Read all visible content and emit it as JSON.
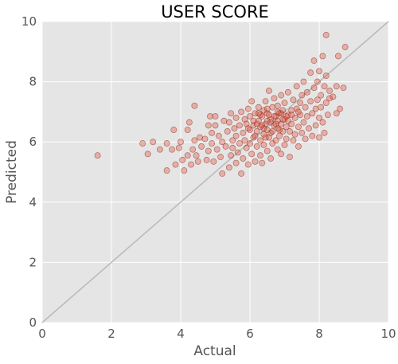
{
  "chart_data": {
    "type": "scatter",
    "title": "USER SCORE",
    "xlabel": "Actual",
    "ylabel": "Predicted",
    "xlim": [
      0,
      10
    ],
    "ylim": [
      0,
      10
    ],
    "xticks": [
      "0",
      "2",
      "4",
      "6",
      "8",
      "10"
    ],
    "yticks": [
      "0",
      "2",
      "4",
      "6",
      "8",
      "10"
    ],
    "grid": true,
    "reference_line": {
      "from": [
        0,
        0
      ],
      "to": [
        10,
        10
      ],
      "color": "#bbbbbb"
    },
    "colors": {
      "background": "#e5e5e5",
      "grid": "#ffffff",
      "point_fill": "#e24a33",
      "point_fill_opacity": 0.35,
      "point_stroke": "#8b2a1c"
    },
    "series": [
      {
        "points": [
          [
            1.6,
            5.55
          ],
          [
            2.9,
            5.95
          ],
          [
            3.05,
            5.6
          ],
          [
            3.2,
            6.0
          ],
          [
            3.4,
            5.75
          ],
          [
            3.6,
            5.05
          ],
          [
            3.6,
            5.95
          ],
          [
            3.75,
            5.75
          ],
          [
            3.8,
            6.4
          ],
          [
            3.85,
            5.25
          ],
          [
            3.95,
            5.8
          ],
          [
            4.0,
            6.0
          ],
          [
            4.05,
            5.4
          ],
          [
            4.1,
            5.05
          ],
          [
            4.2,
            5.55
          ],
          [
            4.2,
            6.4
          ],
          [
            4.25,
            6.65
          ],
          [
            4.3,
            5.25
          ],
          [
            4.35,
            5.75
          ],
          [
            4.4,
            6.05
          ],
          [
            4.4,
            7.2
          ],
          [
            4.45,
            5.55
          ],
          [
            4.5,
            5.35
          ],
          [
            4.55,
            6.15
          ],
          [
            4.6,
            5.85
          ],
          [
            4.7,
            6.1
          ],
          [
            4.75,
            5.4
          ],
          [
            4.8,
            6.55
          ],
          [
            4.8,
            5.7
          ],
          [
            4.85,
            6.85
          ],
          [
            4.9,
            5.95
          ],
          [
            4.9,
            6.3
          ],
          [
            4.95,
            5.35
          ],
          [
            5.0,
            6.55
          ],
          [
            5.0,
            6.85
          ],
          [
            5.05,
            5.75
          ],
          [
            5.1,
            6.2
          ],
          [
            5.15,
            5.5
          ],
          [
            5.2,
            6.0
          ],
          [
            5.2,
            4.95
          ],
          [
            5.25,
            6.7
          ],
          [
            5.3,
            5.85
          ],
          [
            5.35,
            6.35
          ],
          [
            5.4,
            5.15
          ],
          [
            5.4,
            6.65
          ],
          [
            5.45,
            5.55
          ],
          [
            5.45,
            6.95
          ],
          [
            5.5,
            6.05
          ],
          [
            5.5,
            5.8
          ],
          [
            5.55,
            6.45
          ],
          [
            5.6,
            5.3
          ],
          [
            5.6,
            6.8
          ],
          [
            5.6,
            6.2
          ],
          [
            5.65,
            5.65
          ],
          [
            5.7,
            6.55
          ],
          [
            5.7,
            5.95
          ],
          [
            5.75,
            4.95
          ],
          [
            5.75,
            7.0
          ],
          [
            5.8,
            6.3
          ],
          [
            5.8,
            5.45
          ],
          [
            5.85,
            6.75
          ],
          [
            5.85,
            6.05
          ],
          [
            5.9,
            5.8
          ],
          [
            5.9,
            6.6
          ],
          [
            5.95,
            7.1
          ],
          [
            5.95,
            5.25
          ],
          [
            6.0,
            6.4
          ],
          [
            6.0,
            5.95
          ],
          [
            6.0,
            6.85
          ],
          [
            6.05,
            5.6
          ],
          [
            6.05,
            7.35
          ],
          [
            6.1,
            6.15
          ],
          [
            6.1,
            6.55
          ],
          [
            6.15,
            5.35
          ],
          [
            6.15,
            6.95
          ],
          [
            6.2,
            5.85
          ],
          [
            6.2,
            6.35
          ],
          [
            6.25,
            6.7
          ],
          [
            6.25,
            7.15
          ],
          [
            6.3,
            5.55
          ],
          [
            6.3,
            6.05
          ],
          [
            6.3,
            6.5
          ],
          [
            6.35,
            6.85
          ],
          [
            6.35,
            5.3
          ],
          [
            6.4,
            6.25
          ],
          [
            6.4,
            7.05
          ],
          [
            6.4,
            5.9
          ],
          [
            6.45,
            6.6
          ],
          [
            6.45,
            7.35
          ],
          [
            6.5,
            5.7
          ],
          [
            6.5,
            6.4
          ],
          [
            6.5,
            6.95
          ],
          [
            6.55,
            6.15
          ],
          [
            6.55,
            7.7
          ],
          [
            6.6,
            5.45
          ],
          [
            6.6,
            6.75
          ],
          [
            6.6,
            6.3
          ],
          [
            6.65,
            7.15
          ],
          [
            6.65,
            5.95
          ],
          [
            6.7,
            6.55
          ],
          [
            6.7,
            7.45
          ],
          [
            6.75,
            6.05
          ],
          [
            6.75,
            6.85
          ],
          [
            6.8,
            5.75
          ],
          [
            6.8,
            6.45
          ],
          [
            6.8,
            7.2
          ],
          [
            6.85,
            6.2
          ],
          [
            6.85,
            6.95
          ],
          [
            6.9,
            5.6
          ],
          [
            6.9,
            6.6
          ],
          [
            6.9,
            7.55
          ],
          [
            6.95,
            6.35
          ],
          [
            6.95,
            7.05
          ],
          [
            7.0,
            5.9
          ],
          [
            7.0,
            6.75
          ],
          [
            7.0,
            7.3
          ],
          [
            7.05,
            6.5
          ],
          [
            7.05,
            6.1
          ],
          [
            7.1,
            6.9
          ],
          [
            7.1,
            7.65
          ],
          [
            7.15,
            6.35
          ],
          [
            7.15,
            5.5
          ],
          [
            7.2,
            7.05
          ],
          [
            7.2,
            6.6
          ],
          [
            7.25,
            6.05
          ],
          [
            7.25,
            7.4
          ],
          [
            7.3,
            6.8
          ],
          [
            7.3,
            6.25
          ],
          [
            7.35,
            7.1
          ],
          [
            7.35,
            7.85
          ],
          [
            7.4,
            6.5
          ],
          [
            7.4,
            5.85
          ],
          [
            7.45,
            7.3
          ],
          [
            7.45,
            6.9
          ],
          [
            7.5,
            6.3
          ],
          [
            7.5,
            7.55
          ],
          [
            7.55,
            6.65
          ],
          [
            7.55,
            8.0
          ],
          [
            7.6,
            7.15
          ],
          [
            7.6,
            6.1
          ],
          [
            7.65,
            6.85
          ],
          [
            7.65,
            7.65
          ],
          [
            7.7,
            6.45
          ],
          [
            7.75,
            7.35
          ],
          [
            7.75,
            8.3
          ],
          [
            7.8,
            6.95
          ],
          [
            7.8,
            6.2
          ],
          [
            7.85,
            7.8
          ],
          [
            7.85,
            8.7
          ],
          [
            7.9,
            7.1
          ],
          [
            7.9,
            6.55
          ],
          [
            7.95,
            8.0
          ],
          [
            7.95,
            7.4
          ],
          [
            8.0,
            6.8
          ],
          [
            8.0,
            8.35
          ],
          [
            8.0,
            6.15
          ],
          [
            8.05,
            7.55
          ],
          [
            8.05,
            7.15
          ],
          [
            8.1,
            8.85
          ],
          [
            8.1,
            6.65
          ],
          [
            8.15,
            7.85
          ],
          [
            8.15,
            6.3
          ],
          [
            8.2,
            7.3
          ],
          [
            8.2,
            8.2
          ],
          [
            8.2,
            9.55
          ],
          [
            8.25,
            6.9
          ],
          [
            8.3,
            7.7
          ],
          [
            8.3,
            7.45
          ],
          [
            8.4,
            7.5
          ],
          [
            8.5,
            6.95
          ],
          [
            8.5,
            7.85
          ],
          [
            8.55,
            8.85
          ],
          [
            8.6,
            7.1
          ],
          [
            8.7,
            7.8
          ],
          [
            8.75,
            9.15
          ],
          [
            6.2,
            6.6
          ],
          [
            6.4,
            6.45
          ],
          [
            6.6,
            6.65
          ],
          [
            6.8,
            6.7
          ],
          [
            6.3,
            6.9
          ],
          [
            6.55,
            6.9
          ],
          [
            6.75,
            6.6
          ],
          [
            6.95,
            6.75
          ],
          [
            7.1,
            6.7
          ],
          [
            6.45,
            6.15
          ],
          [
            6.65,
            6.35
          ],
          [
            6.85,
            6.4
          ],
          [
            7.05,
            6.85
          ],
          [
            6.15,
            6.2
          ],
          [
            6.35,
            6.55
          ],
          [
            6.5,
            6.7
          ],
          [
            6.7,
            6.85
          ],
          [
            6.9,
            6.95
          ],
          [
            7.2,
            6.9
          ],
          [
            7.4,
            7.0
          ],
          [
            5.95,
            6.45
          ],
          [
            6.1,
            6.7
          ],
          [
            6.25,
            6.95
          ],
          [
            6.5,
            7.1
          ],
          [
            6.8,
            7.0
          ]
        ]
      }
    ]
  }
}
